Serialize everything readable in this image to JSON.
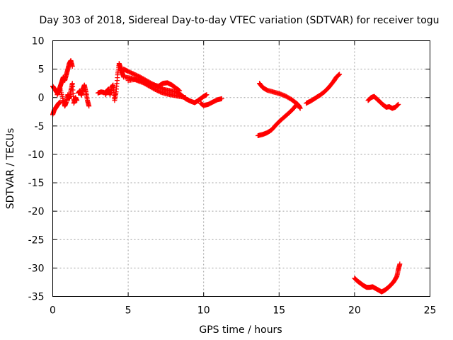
{
  "chart_data": {
    "type": "scatter",
    "title": "Day 303 of 2018, Sidereal Day-to-day VTEC variation (SDTVAR) for receiver togu",
    "xlabel": "GPS time / hours",
    "ylabel": "SDTVAR / TECUs",
    "xlim": [
      0,
      25
    ],
    "ylim": [
      -35,
      10
    ],
    "xticks": [
      0,
      5,
      10,
      15,
      20,
      25
    ],
    "yticks": [
      10,
      5,
      0,
      -5,
      -10,
      -15,
      -20,
      -25,
      -30,
      -35
    ],
    "grid": true,
    "marker": "plus",
    "series": [
      {
        "name": "SDTVAR",
        "color": "#ff0000",
        "segments": [
          [
            [
              0.0,
              -3.0
            ],
            [
              0.1,
              -2.2
            ],
            [
              0.2,
              -1.8
            ],
            [
              0.3,
              -1.4
            ],
            [
              0.4,
              -1.0
            ],
            [
              0.5,
              -0.8
            ]
          ],
          [
            [
              0.0,
              2.0
            ],
            [
              0.1,
              1.6
            ],
            [
              0.2,
              1.2
            ],
            [
              0.3,
              0.8
            ],
            [
              0.4,
              1.2
            ],
            [
              0.5,
              2.0
            ],
            [
              0.6,
              2.8
            ],
            [
              0.7,
              3.6
            ],
            [
              0.8,
              3.0
            ],
            [
              0.9,
              4.0
            ],
            [
              1.0,
              5.0
            ],
            [
              1.1,
              6.0
            ],
            [
              1.2,
              6.5
            ],
            [
              1.3,
              5.5
            ]
          ],
          [
            [
              0.3,
              0.5
            ],
            [
              0.5,
              1.5
            ],
            [
              0.7,
              -0.5
            ],
            [
              0.8,
              -1.5
            ],
            [
              0.9,
              -0.8
            ],
            [
              1.0,
              0.5
            ],
            [
              1.1,
              -0.2
            ],
            [
              1.2,
              1.2
            ],
            [
              1.3,
              2.5
            ],
            [
              1.4,
              -1.0
            ],
            [
              1.5,
              0.0
            ],
            [
              1.6,
              -0.5
            ]
          ],
          [
            [
              1.7,
              0.8
            ],
            [
              1.8,
              1.2
            ],
            [
              1.9,
              0.4
            ],
            [
              2.0,
              1.5
            ],
            [
              2.1,
              2.2
            ],
            [
              2.2,
              1.0
            ],
            [
              2.3,
              -0.5
            ],
            [
              2.4,
              -1.5
            ]
          ],
          [
            [
              3.0,
              0.8
            ],
            [
              3.2,
              1.0
            ],
            [
              3.4,
              0.9
            ]
          ],
          [
            [
              3.5,
              0.5
            ],
            [
              3.6,
              1.2
            ],
            [
              3.7,
              1.5
            ],
            [
              3.8,
              0.5
            ],
            [
              3.9,
              1.8
            ],
            [
              4.0,
              2.2
            ],
            [
              4.1,
              -0.5
            ],
            [
              4.2,
              1.0
            ],
            [
              4.3,
              4.0
            ],
            [
              4.4,
              6.0
            ],
            [
              4.5,
              5.2
            ],
            [
              4.6,
              4.4
            ],
            [
              4.7,
              3.6
            ]
          ],
          [
            [
              4.7,
              5.0
            ],
            [
              5.0,
              4.6
            ],
            [
              5.4,
              4.1
            ],
            [
              5.8,
              3.6
            ],
            [
              6.2,
              3.0
            ],
            [
              6.6,
              2.4
            ],
            [
              7.0,
              1.9
            ],
            [
              7.4,
              1.4
            ],
            [
              7.8,
              1.2
            ],
            [
              8.2,
              1.0
            ],
            [
              8.5,
              0.5
            ],
            [
              8.8,
              -0.2
            ],
            [
              9.1,
              -0.6
            ],
            [
              9.4,
              -0.9
            ],
            [
              9.6,
              -0.6
            ],
            [
              9.8,
              -0.2
            ],
            [
              10.0,
              0.2
            ],
            [
              10.2,
              0.5
            ]
          ],
          [
            [
              4.8,
              3.6
            ],
            [
              5.2,
              3.4
            ],
            [
              5.6,
              3.0
            ],
            [
              6.0,
              2.6
            ],
            [
              6.4,
              2.0
            ],
            [
              6.8,
              1.4
            ],
            [
              7.2,
              0.9
            ],
            [
              7.6,
              0.6
            ],
            [
              8.0,
              0.4
            ],
            [
              8.4,
              0.2
            ],
            [
              8.8,
              0.0
            ]
          ],
          [
            [
              5.0,
              3.0
            ],
            [
              5.5,
              3.2
            ],
            [
              6.0,
              2.9
            ],
            [
              6.5,
              2.4
            ],
            [
              7.0,
              2.0
            ],
            [
              7.3,
              2.5
            ],
            [
              7.6,
              2.6
            ],
            [
              7.9,
              2.2
            ],
            [
              8.2,
              1.6
            ],
            [
              8.4,
              1.2
            ]
          ],
          [
            [
              9.8,
              -1.0
            ],
            [
              10.0,
              -1.4
            ],
            [
              10.3,
              -1.2
            ],
            [
              10.6,
              -0.8
            ],
            [
              10.9,
              -0.4
            ],
            [
              11.2,
              -0.2
            ]
          ],
          [
            [
              13.7,
              2.5
            ],
            [
              13.9,
              1.8
            ],
            [
              14.2,
              1.3
            ],
            [
              14.6,
              1.0
            ],
            [
              15.0,
              0.7
            ],
            [
              15.4,
              0.3
            ],
            [
              15.8,
              -0.3
            ],
            [
              16.1,
              -0.9
            ],
            [
              16.3,
              -1.4
            ],
            [
              16.4,
              -1.9
            ]
          ],
          [
            [
              13.6,
              -6.7
            ],
            [
              13.9,
              -6.5
            ],
            [
              14.2,
              -6.2
            ],
            [
              14.5,
              -5.7
            ],
            [
              14.8,
              -4.8
            ],
            [
              15.1,
              -4.0
            ],
            [
              15.4,
              -3.3
            ],
            [
              15.7,
              -2.6
            ],
            [
              16.0,
              -1.8
            ],
            [
              16.2,
              -1.1
            ]
          ],
          [
            [
              16.8,
              -1.0
            ],
            [
              17.1,
              -0.6
            ],
            [
              17.4,
              -0.1
            ],
            [
              17.7,
              0.4
            ],
            [
              18.0,
              1.0
            ],
            [
              18.3,
              1.8
            ],
            [
              18.6,
              2.8
            ],
            [
              18.8,
              3.6
            ],
            [
              19.0,
              4.1
            ]
          ],
          [
            [
              20.9,
              -0.5
            ],
            [
              21.1,
              0.0
            ],
            [
              21.3,
              0.2
            ],
            [
              21.5,
              -0.3
            ],
            [
              21.7,
              -0.8
            ],
            [
              21.9,
              -1.3
            ],
            [
              22.1,
              -1.7
            ],
            [
              22.3,
              -1.6
            ],
            [
              22.5,
              -1.9
            ],
            [
              22.7,
              -1.7
            ],
            [
              22.9,
              -1.2
            ]
          ],
          [
            [
              20.0,
              -31.8
            ],
            [
              20.2,
              -32.3
            ],
            [
              20.4,
              -32.7
            ],
            [
              20.6,
              -33.1
            ],
            [
              20.8,
              -33.4
            ],
            [
              21.0,
              -33.4
            ],
            [
              21.2,
              -33.3
            ],
            [
              21.4,
              -33.6
            ],
            [
              21.6,
              -33.9
            ],
            [
              21.8,
              -34.2
            ],
            [
              22.0,
              -33.9
            ],
            [
              22.2,
              -33.5
            ],
            [
              22.4,
              -33.0
            ],
            [
              22.6,
              -32.4
            ],
            [
              22.8,
              -31.5
            ],
            [
              22.9,
              -30.3
            ],
            [
              23.0,
              -29.3
            ]
          ]
        ]
      }
    ]
  }
}
